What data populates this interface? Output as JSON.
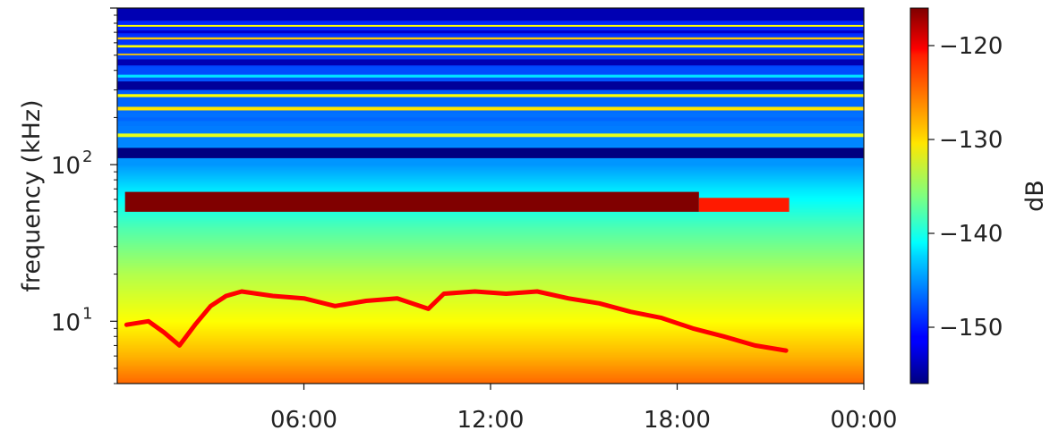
{
  "chart_data": {
    "type": "heatmap",
    "title": "",
    "xlabel": "",
    "ylabel": "frequency (kHz)",
    "y_scale": "log",
    "ylim_khz": [
      4,
      1000
    ],
    "xlim": [
      "00:00",
      "24:00"
    ],
    "x_tick_labels": [
      "06:00",
      "12:00",
      "18:00",
      "00:00"
    ],
    "x_tick_hours": [
      6,
      12,
      18,
      24
    ],
    "y_tick_labels": [
      {
        "base": "10",
        "exp": "1",
        "value_khz": 10
      },
      {
        "base": "10",
        "exp": "2",
        "value_khz": 100
      }
    ],
    "colorbar": {
      "label": "dB",
      "min_db": -156,
      "max_db": -116,
      "tick_values": [
        -120,
        -130,
        -140,
        -150
      ],
      "tick_labels": [
        "−120",
        "−130",
        "−140",
        "−150"
      ],
      "colormap": "jet"
    },
    "background_profile": [
      {
        "f_khz": 4,
        "db": -125
      },
      {
        "f_khz": 6,
        "db": -128
      },
      {
        "f_khz": 10,
        "db": -131
      },
      {
        "f_khz": 20,
        "db": -134
      },
      {
        "f_khz": 40,
        "db": -138
      },
      {
        "f_khz": 70,
        "db": -142
      },
      {
        "f_khz": 100,
        "db": -145
      },
      {
        "f_khz": 1000,
        "db": -150
      }
    ],
    "horizontal_bands": [
      {
        "f_low_khz": 110,
        "f_high_khz": 128,
        "db": -156
      },
      {
        "f_low_khz": 150,
        "f_high_khz": 158,
        "db": -132
      },
      {
        "f_low_khz": 190,
        "f_high_khz": 200,
        "db": -147
      },
      {
        "f_low_khz": 222,
        "f_high_khz": 234,
        "db": -130
      },
      {
        "f_low_khz": 270,
        "f_high_khz": 282,
        "db": -131
      },
      {
        "f_low_khz": 300,
        "f_high_khz": 340,
        "db": -155
      },
      {
        "f_low_khz": 360,
        "f_high_khz": 375,
        "db": -142
      },
      {
        "f_low_khz": 430,
        "f_high_khz": 470,
        "db": -154
      },
      {
        "f_low_khz": 500,
        "f_high_khz": 512,
        "db": -129
      },
      {
        "f_low_khz": 560,
        "f_high_khz": 580,
        "db": -131
      },
      {
        "f_low_khz": 630,
        "f_high_khz": 650,
        "db": -129
      },
      {
        "f_low_khz": 690,
        "f_high_khz": 720,
        "db": -153
      },
      {
        "f_low_khz": 760,
        "f_high_khz": 780,
        "db": -131
      },
      {
        "f_low_khz": 830,
        "f_high_khz": 1000,
        "db": -154
      }
    ],
    "interference_band": {
      "f_low_khz": 50,
      "f_high_khz": 67,
      "db": -116,
      "start_hour": 0.25,
      "end_hour": 18.7,
      "tail_end_hour": 21.6,
      "tail_db": -122
    },
    "hiss_trace": [
      {
        "hour": 0.3,
        "f_khz": 9.5
      },
      {
        "hour": 1.0,
        "f_khz": 10.0
      },
      {
        "hour": 1.5,
        "f_khz": 8.5
      },
      {
        "hour": 2.0,
        "f_khz": 7.0
      },
      {
        "hour": 2.5,
        "f_khz": 9.5
      },
      {
        "hour": 3.0,
        "f_khz": 12.5
      },
      {
        "hour": 3.5,
        "f_khz": 14.5
      },
      {
        "hour": 4.0,
        "f_khz": 15.5
      },
      {
        "hour": 5.0,
        "f_khz": 14.5
      },
      {
        "hour": 6.0,
        "f_khz": 14.0
      },
      {
        "hour": 7.0,
        "f_khz": 12.5
      },
      {
        "hour": 8.0,
        "f_khz": 13.5
      },
      {
        "hour": 9.0,
        "f_khz": 14.0
      },
      {
        "hour": 10.0,
        "f_khz": 12.0
      },
      {
        "hour": 10.5,
        "f_khz": 15.0
      },
      {
        "hour": 11.5,
        "f_khz": 15.5
      },
      {
        "hour": 12.5,
        "f_khz": 15.0
      },
      {
        "hour": 13.5,
        "f_khz": 15.5
      },
      {
        "hour": 14.5,
        "f_khz": 14.0
      },
      {
        "hour": 15.5,
        "f_khz": 13.0
      },
      {
        "hour": 16.5,
        "f_khz": 11.5
      },
      {
        "hour": 17.5,
        "f_khz": 10.5
      },
      {
        "hour": 18.5,
        "f_khz": 9.0
      },
      {
        "hour": 19.5,
        "f_khz": 8.0
      },
      {
        "hour": 20.5,
        "f_khz": 7.0
      },
      {
        "hour": 21.5,
        "f_khz": 6.5
      }
    ],
    "hiss_trace_db": -121,
    "grid": false
  }
}
